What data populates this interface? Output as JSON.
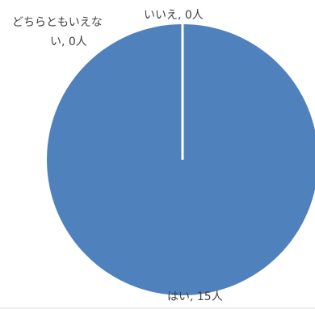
{
  "chart_data": {
    "type": "pie",
    "slices": [
      {
        "label": "はい",
        "value": 15,
        "display": "はい, 15人"
      },
      {
        "label": "いいえ",
        "value": 0,
        "display": "いいえ, 0人"
      },
      {
        "label": "どちらともいえない",
        "value": 0,
        "display_lines": [
          "どちらともいえな",
          "い, 0人"
        ]
      }
    ],
    "colors": {
      "slice": "#4f81bd",
      "separator": "#ffffff",
      "label": "#404040",
      "frame": "#d9d9d9"
    },
    "legend": "none",
    "title": ""
  }
}
